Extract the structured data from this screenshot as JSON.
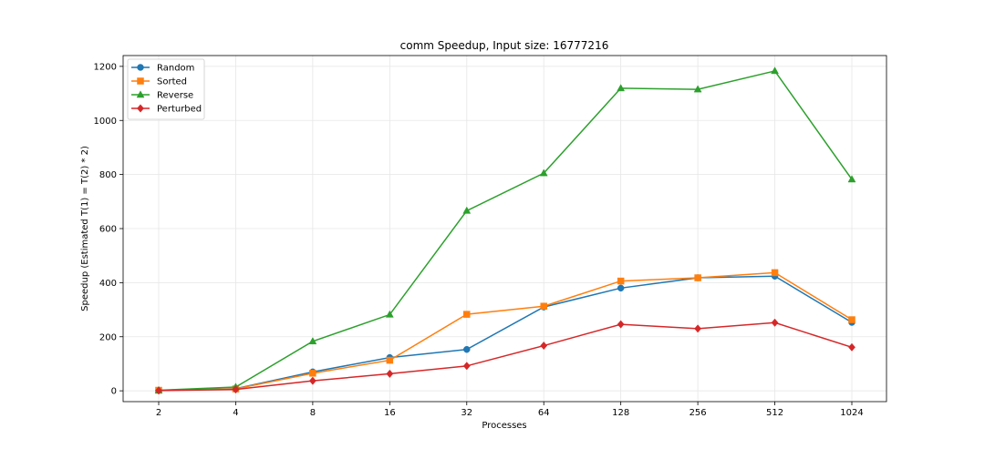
{
  "chart_data": {
    "type": "line",
    "title": "comm Speedup, Input size: 16777216",
    "xlabel": "Processes",
    "ylabel": "Speedup (Estimated T(1) = T(2) * 2)",
    "categories": [
      "2",
      "4",
      "8",
      "16",
      "32",
      "64",
      "128",
      "256",
      "512",
      "1024"
    ],
    "ylim": [
      -40,
      1240
    ],
    "yticks": [
      0,
      200,
      400,
      600,
      800,
      1000,
      1200
    ],
    "grid": true,
    "legend_position": "top-left",
    "series": [
      {
        "name": "Random",
        "color": "#1f77b4",
        "marker": "circle",
        "values": [
          2,
          8,
          70,
          123,
          153,
          310,
          380,
          418,
          424,
          253
        ]
      },
      {
        "name": "Sorted",
        "color": "#ff7f0e",
        "marker": "square",
        "values": [
          2,
          7,
          65,
          113,
          283,
          313,
          406,
          418,
          437,
          263
        ]
      },
      {
        "name": "Reverse",
        "color": "#2ca02c",
        "marker": "triangle",
        "values": [
          2,
          14,
          183,
          282,
          666,
          805,
          1119,
          1115,
          1183,
          782
        ]
      },
      {
        "name": "Perturbed",
        "color": "#d62728",
        "marker": "diamond",
        "values": [
          1,
          5,
          37,
          63,
          92,
          167,
          246,
          230,
          252,
          161
        ]
      }
    ]
  }
}
